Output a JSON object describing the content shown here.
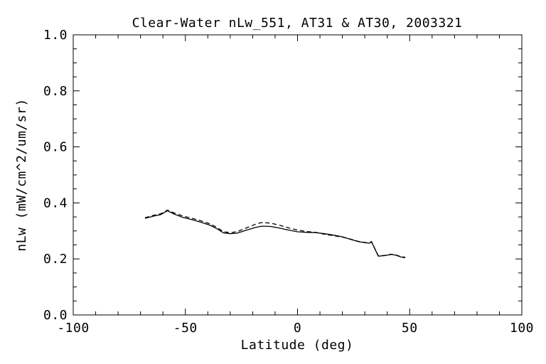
{
  "chart_data": {
    "type": "line",
    "title": "Clear-Water nLw_551, AT31 & AT30, 2003321",
    "xlabel": "Latitude (deg)",
    "ylabel": "nLw (mW/cm^2/um/sr)",
    "xlim": [
      -100,
      100
    ],
    "ylim": [
      0.0,
      1.0
    ],
    "x_major_ticks": [
      -100,
      -50,
      0,
      50,
      100
    ],
    "x_tick_labels": [
      "-100",
      "-50",
      "0",
      "50",
      "100"
    ],
    "x_minor_step": 10,
    "y_major_ticks": [
      0.0,
      0.2,
      0.4,
      0.6,
      0.8,
      1.0
    ],
    "y_tick_labels": [
      "0.0",
      "0.2",
      "0.4",
      "0.6",
      "0.8",
      "1.0"
    ],
    "y_minor_step": 0.05,
    "grid": false,
    "legend": "none",
    "background_color": "#ffffff",
    "axis_color": "#000000",
    "series": [
      {
        "name": "AT31",
        "line_style": "solid",
        "color": "#000000",
        "x": [
          -68,
          -64,
          -61,
          -58,
          -55,
          -51,
          -47,
          -43,
          -39,
          -36,
          -33,
          -30,
          -27,
          -23,
          -19,
          -16,
          -12,
          -8,
          -4,
          0,
          4,
          8,
          12,
          16,
          20,
          24,
          27,
          30,
          32,
          33,
          36,
          39,
          42,
          44,
          46,
          48
        ],
        "y": [
          0.345,
          0.353,
          0.358,
          0.372,
          0.36,
          0.348,
          0.34,
          0.331,
          0.32,
          0.308,
          0.293,
          0.29,
          0.292,
          0.302,
          0.312,
          0.317,
          0.316,
          0.31,
          0.303,
          0.297,
          0.295,
          0.294,
          0.29,
          0.285,
          0.279,
          0.269,
          0.262,
          0.258,
          0.256,
          0.261,
          0.21,
          0.212,
          0.216,
          0.213,
          0.207,
          0.204
        ]
      },
      {
        "name": "AT30",
        "line_style": "dashed",
        "color": "#000000",
        "x": [
          -68,
          -64,
          -61,
          -58,
          -55,
          -51,
          -47,
          -43,
          -39,
          -36,
          -33,
          -30,
          -27,
          -23,
          -19,
          -16,
          -12,
          -8,
          -4,
          0,
          4,
          8,
          12,
          16,
          20,
          24,
          27,
          30,
          32,
          33,
          36,
          39,
          42,
          44,
          46,
          48
        ],
        "y": [
          0.347,
          0.356,
          0.361,
          0.374,
          0.364,
          0.353,
          0.345,
          0.336,
          0.325,
          0.313,
          0.297,
          0.294,
          0.297,
          0.31,
          0.323,
          0.33,
          0.328,
          0.32,
          0.311,
          0.303,
          0.298,
          0.295,
          0.288,
          0.283,
          0.278,
          0.27,
          0.263,
          0.259,
          0.257,
          0.262,
          0.211,
          0.213,
          0.217,
          0.214,
          0.208,
          0.206
        ]
      }
    ]
  }
}
